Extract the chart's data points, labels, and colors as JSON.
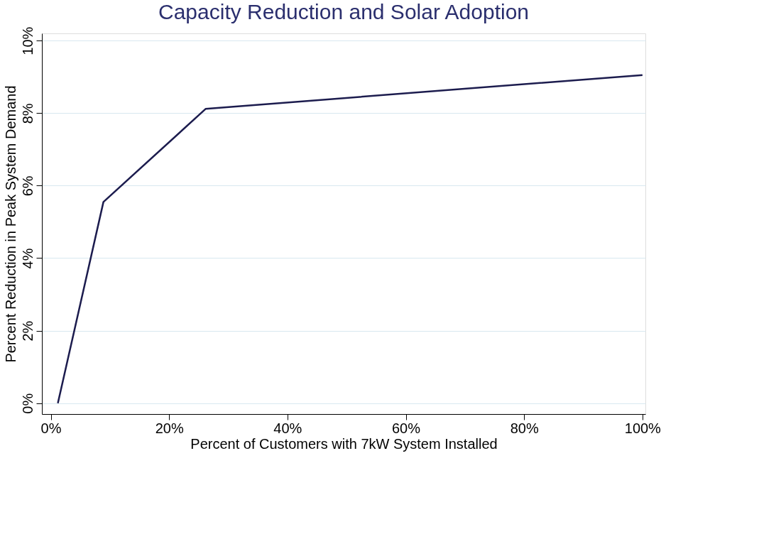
{
  "chart_data": {
    "type": "line",
    "title": "Capacity Reduction and Solar Adoption",
    "xlabel": "Percent of Customers with 7kW System Installed",
    "ylabel": "Percent Reduction in Peak System Demand",
    "x": [
      1.2,
      8.9,
      26.2,
      100
    ],
    "series": [
      {
        "color": "#1c1c4e",
        "values": [
          0,
          5.55,
          8.12,
          9.05
        ]
      }
    ],
    "xlim": [
      -1.5,
      100.5
    ],
    "ylim": [
      -0.3,
      10.2
    ],
    "xticks": [
      {
        "value": 0,
        "label": "0%"
      },
      {
        "value": 20,
        "label": "20%"
      },
      {
        "value": 40,
        "label": "40%"
      },
      {
        "value": 60,
        "label": "60%"
      },
      {
        "value": 80,
        "label": "80%"
      },
      {
        "value": 100,
        "label": "100%"
      }
    ],
    "yticks": [
      {
        "value": 0,
        "label": "0%"
      },
      {
        "value": 2,
        "label": "2%"
      },
      {
        "value": 4,
        "label": "4%"
      },
      {
        "value": 6,
        "label": "6%"
      },
      {
        "value": 8,
        "label": "8%"
      },
      {
        "value": 10,
        "label": "10%"
      }
    ],
    "grid": "y",
    "marker": "none",
    "line_style": "solid",
    "legend": false
  }
}
